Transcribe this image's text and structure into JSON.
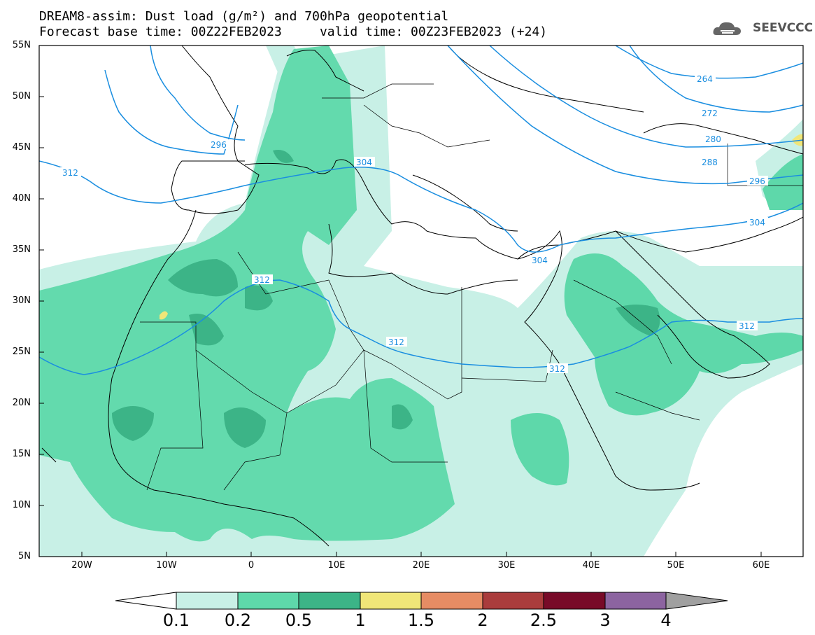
{
  "header": {
    "line1": "DREAM8-assim: Dust load (g/m²) and 700hPa geopotential",
    "line2": "Forecast base time: 00Z22FEB2023     valid time: 00Z23FEB2023 (+24)"
  },
  "logo": {
    "text": "SEEVCCC",
    "icon": "cloud-logo-icon"
  },
  "axes": {
    "lat_labels": [
      "55N",
      "50N",
      "45N",
      "40N",
      "35N",
      "30N",
      "25N",
      "20N",
      "15N",
      "10N",
      "5N"
    ],
    "lon_labels": [
      "20W",
      "10W",
      "0",
      "10E",
      "20E",
      "30E",
      "40E",
      "50E",
      "60E"
    ]
  },
  "colorbar": {
    "labels": [
      "0.1",
      "0.2",
      "0.5",
      "1",
      "1.5",
      "2",
      "2.5",
      "3",
      "4"
    ],
    "colors": [
      "#c8f0e6",
      "#5ed8aa",
      "#3cb487",
      "#f0e678",
      "#e68c64",
      "#aa3c3c",
      "#780a28",
      "#8c64a0",
      "#a0a0a0"
    ]
  },
  "contour_labels": [
    "264",
    "272",
    "280",
    "288",
    "296",
    "296",
    "304",
    "304",
    "304",
    "312",
    "312",
    "312",
    "312",
    "312"
  ],
  "colors": {
    "contour": "#1a8ee0",
    "coast": "#000000",
    "dust_low": "#c8f0e6",
    "dust_mid": "#5ed8aa",
    "dust_high": "#3cb487",
    "dust_peak": "#f0e678"
  }
}
